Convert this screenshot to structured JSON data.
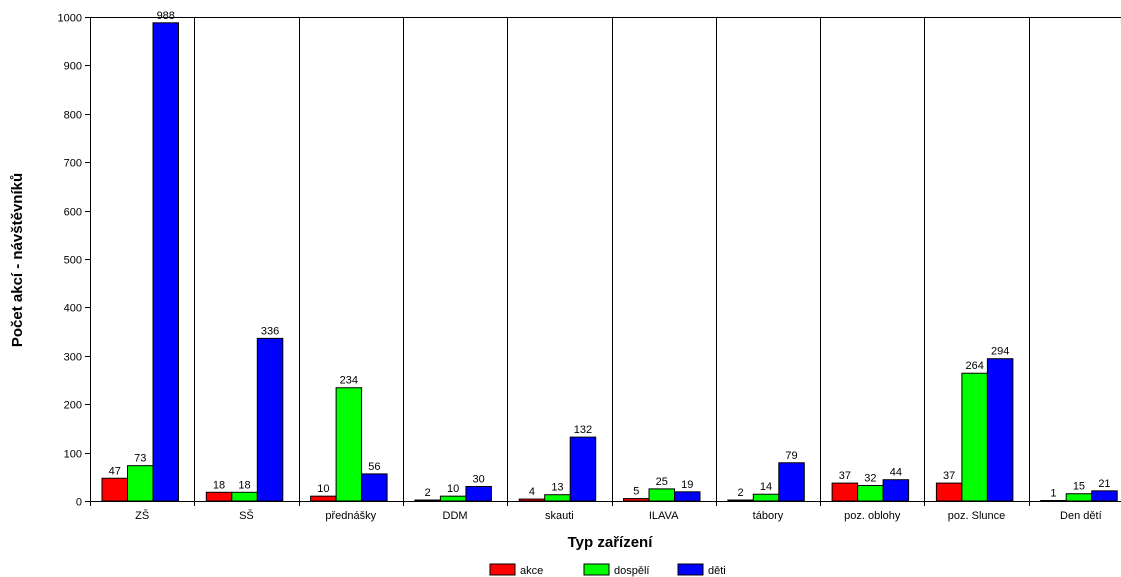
{
  "chart_data": {
    "type": "bar",
    "xlabel": "Typ zařízení",
    "ylabel": "Počet akcí - návštěvníků",
    "ylim": [
      0,
      1000
    ],
    "yticks": [
      0,
      100,
      200,
      300,
      400,
      500,
      600,
      700,
      800,
      900,
      1000
    ],
    "grid": "vertical category separators",
    "legend_position": "bottom",
    "categories": [
      "ZŠ",
      "SŠ",
      "přednášky",
      "DDM",
      "skauti",
      "ILAVA",
      "tábory",
      "poz. oblohy",
      "poz. Slunce",
      "Den dětí"
    ],
    "series": [
      {
        "name": "akce",
        "color": "#ff0000",
        "values": [
          47,
          18,
          10,
          2,
          4,
          5,
          2,
          37,
          37,
          1
        ]
      },
      {
        "name": "dospělí",
        "color": "#00ff00",
        "values": [
          73,
          18,
          234,
          10,
          13,
          25,
          14,
          32,
          264,
          15
        ]
      },
      {
        "name": "děti",
        "color": "#0000ff",
        "values": [
          988,
          336,
          56,
          30,
          132,
          19,
          79,
          44,
          294,
          21
        ]
      }
    ]
  }
}
